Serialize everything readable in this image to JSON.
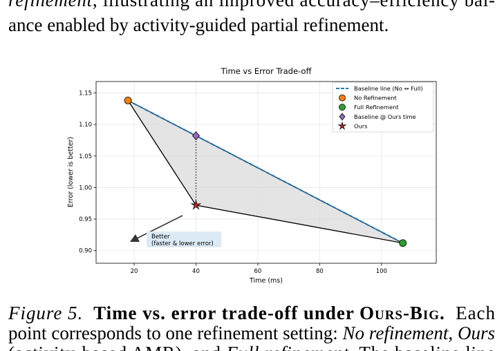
{
  "body": {
    "lines": [
      [
        {
          "text": "refinement",
          "italic": true
        },
        {
          "text": ", illustrating an improved accuracy–efficiency bal-"
        }
      ],
      [
        {
          "text": "ance enabled by activity-guided partial refinement."
        }
      ]
    ]
  },
  "chart_data": {
    "type": "tradeoff",
    "title": "Time vs Error Trade-off",
    "xlabel": "Time (ms)",
    "ylabel": "Error (lower is better)",
    "xlim": [
      7.7,
      117.7
    ],
    "ylim": [
      0.88,
      1.168
    ],
    "xticks": [
      20,
      40,
      60,
      80,
      100
    ],
    "yticks": [
      {
        "value": 0.9,
        "label": "0.90"
      },
      0.95,
      {
        "value": 1,
        "label": "1.00"
      },
      1.05,
      {
        "value": 1.1,
        "label": "1.10"
      },
      1.15
    ],
    "grid": true,
    "legend": "upper right",
    "series": [
      {
        "name": "Baseline line (No ↔ Full)",
        "color": "#1f77b4",
        "marker": "dashed",
        "x": [
          18,
          106.9
        ],
        "y": [
          1.138,
          0.912
        ]
      },
      {
        "name": "No Refinement",
        "color": "#ff7f0e",
        "marker": "circle",
        "x": [
          18
        ],
        "y": [
          1.138
        ]
      },
      {
        "name": "Full Refinement",
        "color": "#2ca02c",
        "marker": "circle",
        "x": [
          106.9
        ],
        "y": [
          0.912
        ]
      },
      {
        "name": "Baseline @ Ours time",
        "color": "#9467bd",
        "marker": "diamond",
        "x": [
          40
        ],
        "y": [
          1.082
        ]
      },
      {
        "name": "Ours",
        "color": "#d62728",
        "marker": "star",
        "x": [
          40
        ],
        "y": [
          0.972
        ]
      }
    ],
    "annotation": {
      "lines": [
        "Better",
        "(faster & lower error)"
      ]
    }
  },
  "caption": {
    "lines": [
      [
        {
          "text": "Figure 5.",
          "italic": true
        },
        {
          "text": "  Time vs. error trade-off under ",
          "bold": true
        },
        {
          "text": "Ours-Big.",
          "bold": true,
          "smallcaps": true
        },
        {
          "text": "  Each"
        }
      ],
      [
        {
          "text": "point corresponds to one refinement setting: "
        },
        {
          "text": "No refinement",
          "italic": true
        },
        {
          "text": ", "
        },
        {
          "text": "Ours",
          "italic": true
        }
      ],
      [
        {
          "text": "(activity-based AMR), and "
        },
        {
          "text": "Full refinement",
          "italic": true
        },
        {
          "text": ". The baseline line"
        }
      ]
    ]
  }
}
